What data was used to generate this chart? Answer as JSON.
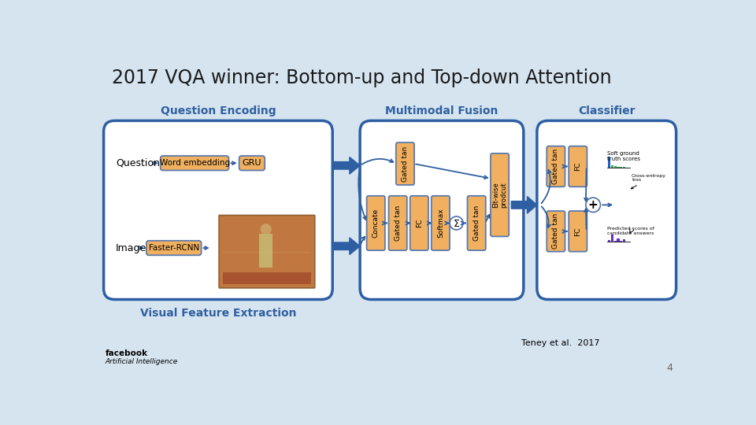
{
  "title": "2017 VQA winner: Bottom-up and Top-down Attention",
  "bg_color": "#d6e4f0",
  "panel_fill": "#ffffff",
  "panel_edge": "#2e5fa3",
  "box_fill": "#f0b060",
  "box_edge": "#5a7ab0",
  "arrow_color": "#3060a0",
  "fat_arrow_color": "#2e5fa3",
  "label_color": "#3060a0",
  "title_color": "#1a1a1a",
  "section_labels": [
    "Question Encoding",
    "Multimodal Fusion",
    "Classifier"
  ],
  "bottom_label": "Visual Feature Extraction",
  "footer_left1": "facebook",
  "footer_left2": "Artificial Intelligence",
  "footer_right": "Teney et al.  2017",
  "page_num": "4"
}
